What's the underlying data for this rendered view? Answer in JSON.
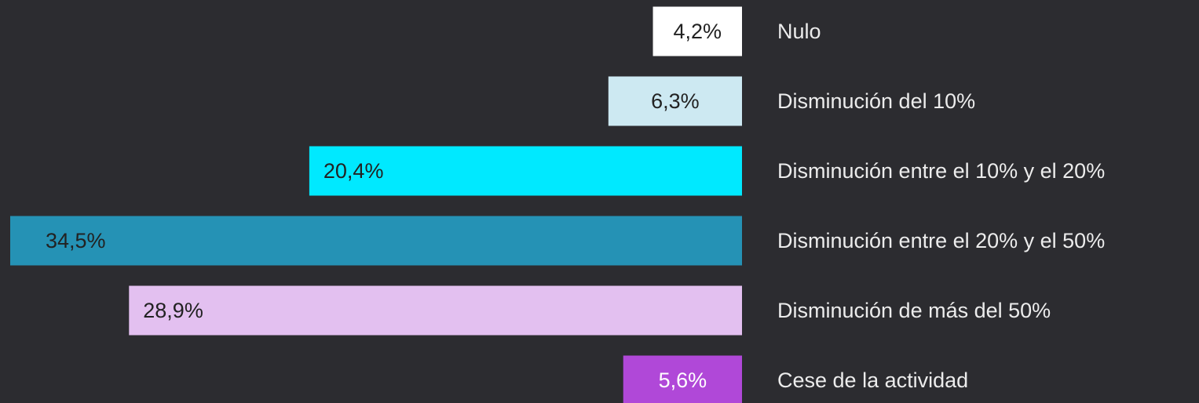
{
  "chart_data": {
    "type": "bar",
    "orientation": "horizontal",
    "categories": [
      "Nulo",
      "Disminución del 10%",
      "Disminución entre el 10% y el 20%",
      "Disminución entre el 20% y el 50%",
      "Disminución de más del 50%",
      "Cese de la actividad"
    ],
    "values": [
      4.2,
      6.3,
      20.4,
      34.5,
      28.9,
      5.6
    ],
    "value_labels": [
      "4,2%",
      "6,3%",
      "20,4%",
      "34,5%",
      "28,9%",
      "5,6%"
    ],
    "colors": [
      "#ffffff",
      "#cde9f2",
      "#00e9ff",
      "#2592b5",
      "#e3c0f0",
      "#b048d8"
    ]
  }
}
